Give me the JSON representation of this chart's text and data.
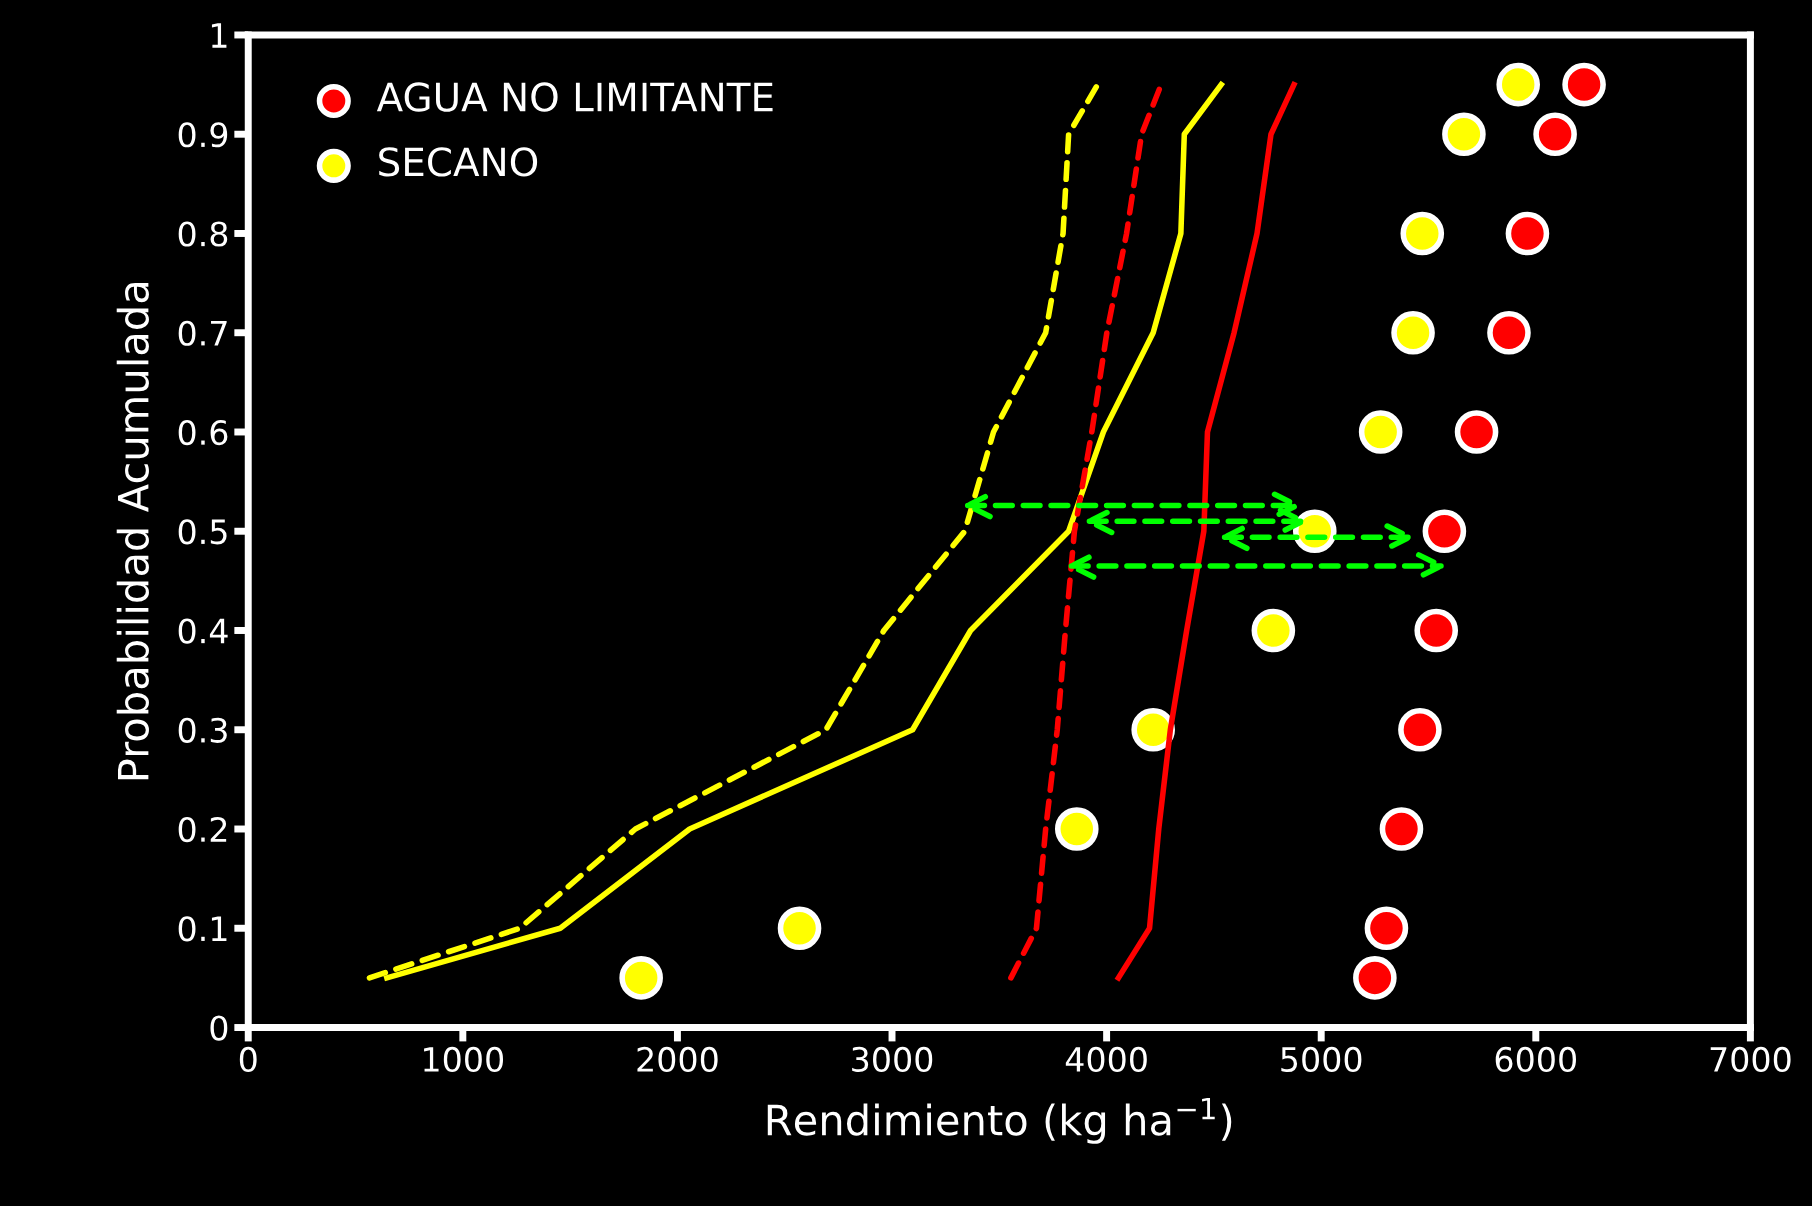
{
  "chart_data": {
    "type": "scatter",
    "xlabel": "Rendimiento (kg ha$^{−1}$)",
    "ylabel": "Probabilidad Acumulada",
    "xlim": [
      0,
      7000
    ],
    "xticks": [
      0,
      1000,
      2000,
      3000,
      4000,
      5000,
      6000,
      7000
    ],
    "ylim": [
      0,
      1
    ],
    "yticks": [
      0,
      0.1,
      0.2,
      0.3,
      0.4,
      0.5,
      0.6,
      0.7,
      0.8,
      0.9,
      1
    ],
    "grid": false,
    "legend": "top left",
    "series": [
      {
        "type": "line",
        "line_style": "dashed",
        "marker": "none",
        "color": "#ffff00",
        "x": [
          565,
          1265,
          1804,
          2692,
          2962,
          3339,
          3473,
          3716,
          3797,
          3823,
          3958
        ],
        "values": [
          0.05,
          0.1,
          0.2,
          0.3,
          0.4,
          0.5,
          0.6,
          0.7,
          0.8,
          0.9,
          0.95
        ]
      },
      {
        "type": "line",
        "line_style": "solid",
        "marker": "none",
        "color": "#ffff00",
        "x": [
          646,
          1454,
          2057,
          3096,
          3366,
          3823,
          3985,
          4217,
          4346,
          4362,
          4534
        ],
        "values": [
          0.05,
          0.1,
          0.2,
          0.3,
          0.4,
          0.5,
          0.6,
          0.7,
          0.8,
          0.9,
          0.95
        ]
      },
      {
        "type": "line",
        "line_style": "dashed",
        "marker": "none",
        "color": "#ff0000",
        "x": [
          3554,
          3673,
          3716,
          3770,
          3808,
          3850,
          3931,
          4001,
          4093,
          4163,
          4254
        ],
        "values": [
          0.05,
          0.1,
          0.2,
          0.3,
          0.4,
          0.5,
          0.6,
          0.7,
          0.8,
          0.9,
          0.95
        ]
      },
      {
        "type": "line",
        "line_style": "solid",
        "marker": "none",
        "color": "#ff0000",
        "x": [
          4055,
          4200,
          4243,
          4297,
          4373,
          4453,
          4470,
          4594,
          4701,
          4766,
          4873
        ],
        "values": [
          0.05,
          0.1,
          0.2,
          0.3,
          0.4,
          0.5,
          0.6,
          0.7,
          0.8,
          0.9,
          0.95
        ]
      },
      {
        "name": "AGUA NO LIMITANTE",
        "marker": "circle",
        "color": "#ff0000",
        "x": [
          5250,
          5304,
          5374,
          5460,
          5536,
          5574,
          5724,
          5875,
          5961,
          6090,
          6225
        ],
        "values": [
          0.05,
          0.1,
          0.2,
          0.3,
          0.4,
          0.5,
          0.6,
          0.7,
          0.8,
          0.9,
          0.95
        ]
      },
      {
        "name": "SECANO",
        "marker": "circle",
        "color": "#ffff00",
        "x": [
          1831,
          2569,
          3861,
          4217,
          4777,
          4970,
          5277,
          5428,
          5471,
          5665,
          5918
        ],
        "values": [
          0.05,
          0.1,
          0.2,
          0.3,
          0.4,
          0.5,
          0.6,
          0.7,
          0.8,
          0.9,
          0.95
        ]
      }
    ]
  }
}
